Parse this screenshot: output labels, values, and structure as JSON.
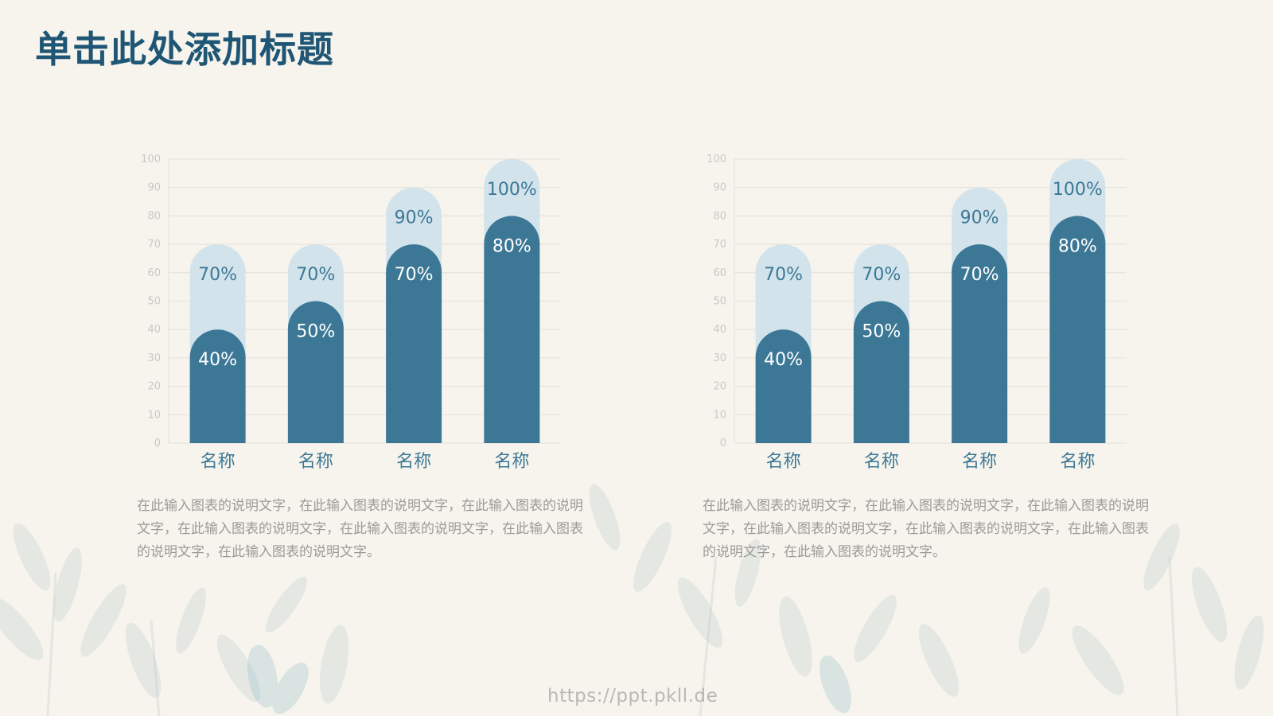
{
  "title": "单击此处添加标题",
  "colors": {
    "background": "#f6f4ec",
    "title": "#1f5675",
    "bar_back": "#d3e3ec",
    "bar_front": "#3c7896",
    "back_label": "#3c7896",
    "front_label": "#ffffff",
    "category_label": "#3c7896",
    "caption": "#9a9a9a",
    "gridline": "#e2e0d8",
    "tick_label": "#c8c8c8"
  },
  "chart_data": [
    {
      "type": "bar",
      "categories": [
        "名称",
        "名称",
        "名称",
        "名称"
      ],
      "series": [
        {
          "values": [
            70,
            70,
            90,
            100
          ]
        },
        {
          "values": [
            40,
            50,
            70,
            80
          ]
        }
      ],
      "back_labels": [
        "70%",
        "70%",
        "90%",
        "100%"
      ],
      "front_labels": [
        "40%",
        "50%",
        "70%",
        "80%"
      ],
      "ylim": [
        0,
        100
      ],
      "yticks": [
        0,
        10,
        20,
        30,
        40,
        50,
        60,
        70,
        80,
        90,
        100
      ],
      "grid": true,
      "bar_style": "rounded-top, overlapping"
    },
    {
      "type": "bar",
      "categories": [
        "名称",
        "名称",
        "名称",
        "名称"
      ],
      "series": [
        {
          "values": [
            70,
            70,
            90,
            100
          ]
        },
        {
          "values": [
            40,
            50,
            70,
            80
          ]
        }
      ],
      "back_labels": [
        "70%",
        "70%",
        "90%",
        "100%"
      ],
      "front_labels": [
        "40%",
        "50%",
        "70%",
        "80%"
      ],
      "ylim": [
        0,
        100
      ],
      "yticks": [
        0,
        10,
        20,
        30,
        40,
        50,
        60,
        70,
        80,
        90,
        100
      ],
      "grid": true,
      "bar_style": "rounded-top, overlapping"
    }
  ],
  "captions": [
    "在此输入图表的说明文字，在此输入图表的说明文字，在此输入图表的说明文字，在此输入图表的说明文字，在此输入图表的说明文字，在此输入图表的说明文字，在此输入图表的说明文字。",
    "在此输入图表的说明文字，在此输入图表的说明文字，在此输入图表的说明文字，在此输入图表的说明文字，在此输入图表的说明文字，在此输入图表的说明文字，在此输入图表的说明文字。"
  ],
  "watermark": "https://ppt.pkll.de"
}
